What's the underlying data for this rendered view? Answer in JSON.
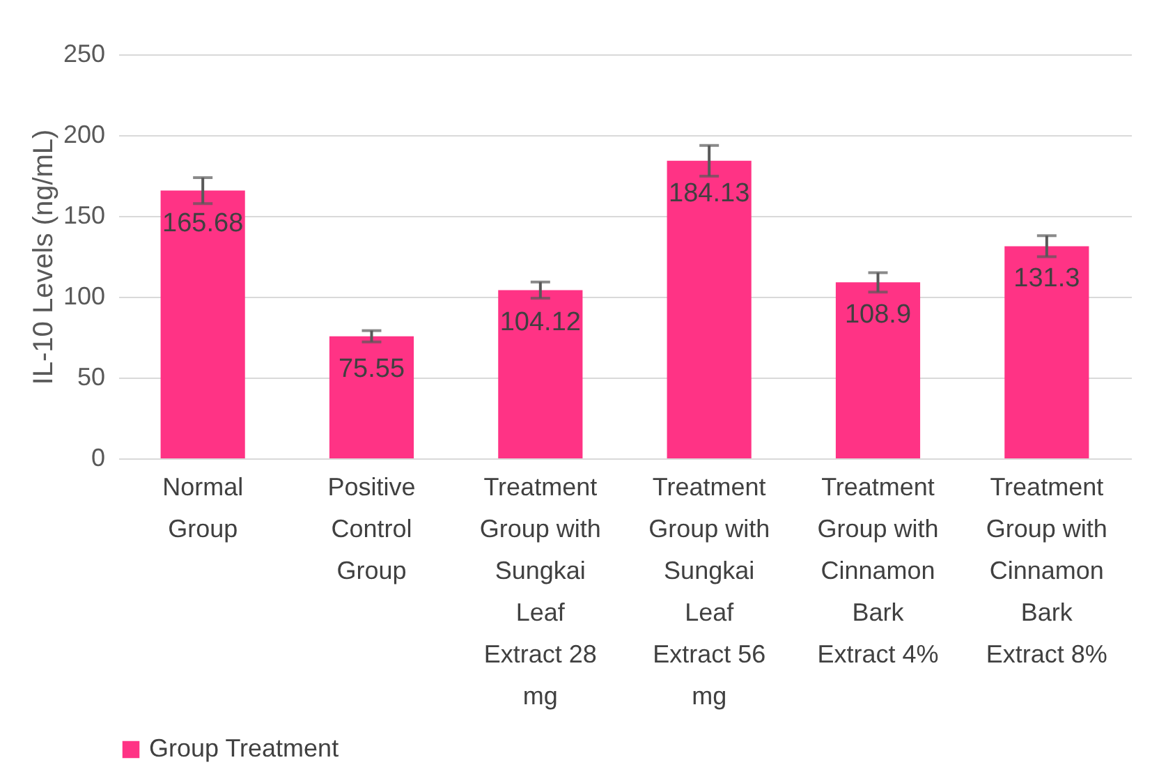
{
  "chart_data": {
    "type": "bar",
    "ylabel": "IL-10  Levels (ng/mL)",
    "categories": [
      "Normal Group",
      "Positive Control Group",
      "Treatment Group with Sungkai Leaf Extract 28 mg",
      "Treatment Group with Sungkai Leaf Extract 56 mg",
      "Treatment Group with Cinnamon Bark Extract 4%",
      "Treatment Group with Cinnamon Bark Extract 8%"
    ],
    "series": [
      {
        "name": "Group Treatment",
        "color": "#ff3385",
        "values": [
          165.68,
          75.55,
          104.12,
          184.13,
          108.9,
          131.3
        ],
        "errors": [
          8,
          3.5,
          5,
          9.5,
          6,
          6.5
        ]
      }
    ],
    "ylim": [
      0,
      250
    ],
    "yticks": [
      0,
      50,
      100,
      150,
      200,
      250
    ],
    "grid": "y",
    "legend": "bottom",
    "data_labels": true
  }
}
